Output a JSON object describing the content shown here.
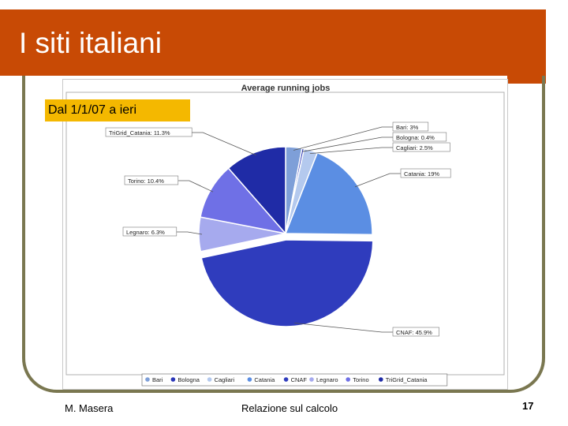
{
  "slide": {
    "title": "I siti italiani",
    "date_range": "Dal 1/1/07 a ieri",
    "footer_left": "M. Masera",
    "footer_center": "Relazione sul calcolo",
    "page_number": "17"
  },
  "chart_data": {
    "type": "pie",
    "title": "Average running jobs",
    "slices": [
      {
        "name": "Bari",
        "value": 3.0,
        "label": "Bari: 3%",
        "color": "#7e9fd8"
      },
      {
        "name": "Bologna",
        "value": 0.4,
        "label": "Bologna: 0.4%",
        "color": "#2a36b8"
      },
      {
        "name": "Cagliari",
        "value": 2.5,
        "label": "Cagliari: 2.5%",
        "color": "#b4c9ee"
      },
      {
        "name": "Catania",
        "value": 19.0,
        "label": "Catania: 19%",
        "color": "#5b8ee3"
      },
      {
        "name": "CNAF",
        "value": 45.9,
        "label": "CNAF: 45.9%",
        "color": "#2f3cbd"
      },
      {
        "name": "Legnaro",
        "value": 6.3,
        "label": "Legnaro: 6.3%",
        "color": "#a6aaee"
      },
      {
        "name": "Torino",
        "value": 10.4,
        "label": "Torino: 10.4%",
        "color": "#6f70e6"
      },
      {
        "name": "TriGrid_Catania",
        "value": 11.3,
        "label": "TriGrid_Catania: 11.3%",
        "color": "#1f2ba6"
      }
    ],
    "legend_placement": "bottom"
  }
}
